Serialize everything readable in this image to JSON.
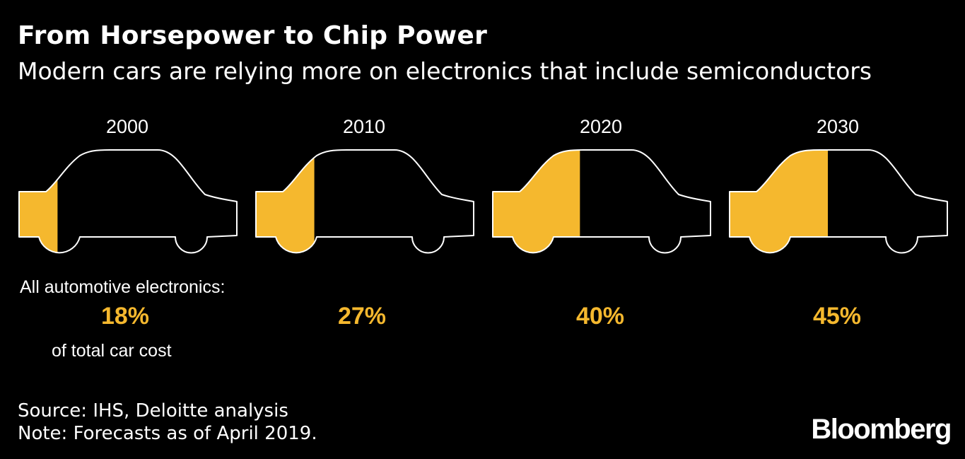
{
  "header": {
    "title": "From Horsepower to Chip Power",
    "subtitle": "Modern cars are relying more on electronics that include semiconductors"
  },
  "labels": {
    "electronics": "All automotive electronics:",
    "cost": "of total car cost"
  },
  "footer": {
    "source": "Source: IHS, Deloitte analysis",
    "note": "Note: Forecasts as of April 2019.",
    "brand": "Bloomberg"
  },
  "colors": {
    "background": "#000000",
    "accent": "#f5b82e",
    "text": "#ffffff"
  },
  "chart_data": {
    "type": "bar",
    "title": "From Horsepower to Chip Power",
    "subtitle": "Modern cars are relying more on electronics that include semiconductors",
    "categories": [
      "2000",
      "2010",
      "2020",
      "2030"
    ],
    "values": [
      18,
      27,
      40,
      45
    ],
    "value_labels": [
      "18%",
      "27%",
      "40%",
      "45%"
    ],
    "unit": "% of total car cost",
    "ylim": [
      0,
      100
    ]
  }
}
